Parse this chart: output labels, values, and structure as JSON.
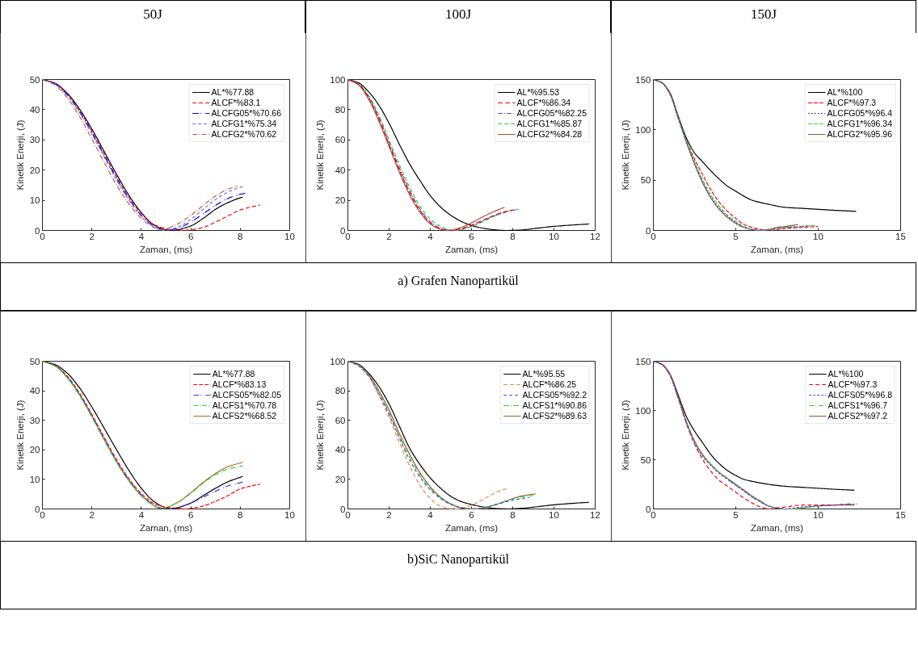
{
  "chart_data": [
    {
      "type": "line",
      "title": "50J",
      "xlabel": "Zaman, (ms)",
      "ylabel": "Kinetik Enerji, (J)",
      "xlim": [
        0,
        10
      ],
      "ylim": [
        0,
        50
      ],
      "xticks": [
        0,
        2,
        4,
        6,
        8,
        10
      ],
      "yticks": [
        0,
        10,
        20,
        30,
        40,
        50
      ],
      "grid": false,
      "legend": "top right",
      "annotations": [
        "a) Grafen Nanopartikül"
      ],
      "series": [
        {
          "name": "AL*%77.88",
          "color": "#000000",
          "line_style": "solid",
          "x": [
            0,
            0.5,
            1,
            1.5,
            2,
            2.5,
            3,
            3.5,
            4,
            4.5,
            5,
            5.25,
            5.5,
            6,
            6.5,
            7,
            7.5,
            8,
            8.1
          ],
          "values": [
            50,
            48.8,
            45.5,
            40.2,
            33.6,
            26.1,
            18.6,
            11.6,
            5.9,
            1.9,
            0.2,
            0,
            0.3,
            1.5,
            4,
            7,
            9.2,
            10.8,
            11
          ]
        },
        {
          "name": "ALCF*%83.1",
          "color": "#ff0000",
          "line_style": "dashed",
          "x": [
            0,
            0.5,
            1,
            1.5,
            2,
            2.5,
            3,
            3.5,
            4,
            4.5,
            5,
            5.5,
            6,
            6.5,
            7,
            7.5,
            8,
            8.5,
            8.8
          ],
          "values": [
            50,
            48.7,
            45.2,
            39.8,
            32.8,
            25.3,
            17.7,
            11,
            5.6,
            2,
            0.6,
            0,
            0.2,
            1,
            2.8,
            4.8,
            6.8,
            7.9,
            8.4
          ]
        },
        {
          "name": "ALCFG05*%70.66",
          "color": "#0000ff",
          "line_style": "dashdot",
          "x": [
            0,
            0.5,
            1,
            1.5,
            2,
            2.5,
            3,
            3.5,
            4,
            4.5,
            5,
            5.5,
            6,
            6.5,
            7,
            7.5,
            8,
            8.2
          ],
          "values": [
            50,
            48.6,
            45,
            39.4,
            32.4,
            24.8,
            17.2,
            10.4,
            5,
            1.5,
            0,
            0.8,
            2.8,
            5.5,
            8.3,
            10.6,
            12,
            12.3
          ]
        },
        {
          "name": "ALCFG1*%75.34",
          "color": "#6b6bff",
          "line_style": "dotted",
          "x": [
            0,
            0.5,
            1,
            1.5,
            2,
            2.5,
            3,
            3.5,
            4,
            4.5,
            4.9,
            5.5,
            6,
            6.5,
            7,
            7.5,
            8,
            8.1
          ],
          "values": [
            50,
            48.5,
            44.7,
            39,
            32,
            24.3,
            16.7,
            10,
            4.7,
            1.3,
            0,
            1.2,
            3.7,
            7,
            10.2,
            12.7,
            14.3,
            14.5
          ]
        },
        {
          "name": "ALCFG2*%70.62",
          "color": "#b5653f",
          "line_style": "dashdot",
          "x": [
            0,
            0.5,
            1,
            1.5,
            2,
            2.5,
            3,
            3.5,
            4,
            4.5,
            4.8,
            5,
            5.5,
            6,
            6.5,
            7,
            7.5,
            7.9
          ],
          "values": [
            50,
            48.2,
            44,
            37.8,
            30.3,
            22.5,
            15,
            8.8,
            4,
            1,
            0.3,
            0.6,
            2.3,
            5,
            8.3,
            11.4,
            13.7,
            14.7
          ]
        }
      ]
    },
    {
      "type": "line",
      "title": "100J",
      "xlabel": "Zaman, (ms)",
      "ylabel": "Kinetik Enerji, (J)",
      "xlim": [
        0,
        12
      ],
      "ylim": [
        0,
        100
      ],
      "xticks": [
        0,
        2,
        4,
        6,
        8,
        10,
        12
      ],
      "yticks": [
        0,
        20,
        40,
        60,
        80,
        100
      ],
      "grid": false,
      "legend": "top right",
      "series": [
        {
          "name": "AL*%95.53",
          "color": "#000000",
          "line_style": "solid",
          "x": [
            0,
            0.5,
            1,
            1.5,
            2,
            2.5,
            3,
            3.5,
            4,
            4.5,
            5,
            5.5,
            6,
            6.5,
            7,
            7.7,
            8.5,
            9,
            10,
            11,
            11.7
          ],
          "values": [
            100,
            98,
            92,
            83,
            71,
            57,
            44,
            33,
            23,
            15.5,
            10,
            6,
            3.3,
            1.6,
            0.6,
            0,
            0.4,
            1.2,
            2.7,
            3.7,
            4.3
          ]
        },
        {
          "name": "ALCF*%86.34",
          "color": "#ff0000",
          "line_style": "dashed",
          "x": [
            0,
            0.5,
            1,
            1.5,
            2,
            2.5,
            3,
            3.5,
            4,
            4.5,
            5,
            5.5,
            6,
            6.5,
            7,
            7.5,
            8
          ],
          "values": [
            100,
            97,
            88,
            74,
            57,
            40,
            25,
            13,
            5,
            1,
            0,
            1.2,
            3.5,
            6.5,
            9.5,
            12,
            13.6
          ]
        },
        {
          "name": "ALCFG05*%82.25",
          "color": "#4b4bff",
          "line_style": "dashdot",
          "x": [
            0,
            0.5,
            1,
            1.5,
            2,
            2.5,
            3,
            3.5,
            4,
            4.5,
            5.1,
            5.5,
            6,
            6.5,
            7,
            7.5,
            8,
            8.15
          ],
          "values": [
            100,
            97.3,
            88.7,
            75,
            58.2,
            41.3,
            26.3,
            14.2,
            5.8,
            1.5,
            0,
            0.8,
            3,
            6,
            9.1,
            11.6,
            13.3,
            13.7
          ]
        },
        {
          "name": "ALCFG1*%85.87",
          "color": "#1fdc1f",
          "line_style": "dashed",
          "x": [
            0,
            0.5,
            1,
            1.5,
            2,
            2.5,
            3,
            3.5,
            4,
            4.5,
            5,
            5.2,
            5.5,
            6,
            6.5,
            7,
            7.5,
            8,
            8.3
          ],
          "values": [
            100,
            97.6,
            89.5,
            76.5,
            60,
            43.5,
            28.5,
            16,
            7.5,
            2.7,
            0.3,
            0,
            0.5,
            2.5,
            5.5,
            8.8,
            11.5,
            13.5,
            14
          ]
        },
        {
          "name": "ALCFG2*%84.28",
          "color": "#b0522a",
          "line_style": "solid",
          "x": [
            0,
            0.5,
            1,
            1.5,
            2,
            2.5,
            3,
            3.5,
            4,
            4.5,
            4.8,
            5,
            5.5,
            6,
            6.5,
            7,
            7.5,
            7.6
          ],
          "values": [
            100,
            96.6,
            87,
            72.5,
            55.5,
            38.5,
            23.5,
            12,
            4.3,
            0.8,
            0,
            0.3,
            2,
            5,
            8.7,
            12,
            14.8,
            15.3
          ]
        }
      ]
    },
    {
      "type": "line",
      "title": "150J",
      "xlabel": "Zaman, (ms)",
      "ylabel": "Kinetik Enerji, (J)",
      "xlim": [
        0,
        15
      ],
      "ylim": [
        0,
        150
      ],
      "xticks": [
        0,
        5,
        10,
        15
      ],
      "yticks": [
        0,
        50,
        100,
        150
      ],
      "grid": false,
      "legend": "top right",
      "series": [
        {
          "name": "AL*%100",
          "color": "#000000",
          "line_style": "solid",
          "x": [
            0,
            0.5,
            1,
            1.5,
            2,
            2.5,
            3,
            3.5,
            4,
            4.5,
            5,
            5.5,
            6,
            7,
            8,
            9,
            10,
            11,
            12.3
          ],
          "values": [
            150,
            147,
            137,
            114,
            92,
            77,
            68,
            59,
            51,
            44,
            39,
            34,
            30,
            26,
            23,
            22,
            21,
            20,
            19
          ]
        },
        {
          "name": "ALCF*%97.3",
          "color": "#ff0000",
          "line_style": "dashed",
          "x": [
            0,
            0.5,
            1,
            1.5,
            2,
            2.5,
            3,
            3.5,
            4,
            4.5,
            5,
            5.5,
            6,
            6.5,
            7,
            7.5,
            8,
            9,
            10
          ],
          "values": [
            150,
            147,
            136,
            112,
            89,
            71,
            55,
            40,
            28,
            19,
            12,
            6,
            3,
            1,
            0,
            1,
            2,
            3,
            4
          ]
        },
        {
          "name": "ALCFG05*%96.4",
          "color": "#4040ff",
          "line_style": "dotted",
          "x": [
            0,
            0.5,
            1,
            1.5,
            2,
            2.5,
            3,
            3.5,
            4,
            4.5,
            5,
            5.5,
            6,
            6.5,
            7,
            7.5,
            8,
            9,
            9.5
          ],
          "values": [
            150,
            147,
            136,
            112,
            88,
            66,
            48,
            33,
            22,
            14,
            8,
            3,
            1,
            0,
            1,
            2,
            3,
            4,
            5
          ]
        },
        {
          "name": "ALCFG1*%96.34",
          "color": "#1fdc1f",
          "line_style": "dashed",
          "x": [
            0,
            0.5,
            1,
            1.5,
            2,
            2.5,
            3,
            3.5,
            4,
            4.5,
            5,
            5.5,
            6,
            6.5,
            7,
            7.5,
            8,
            9,
            9.8
          ],
          "values": [
            150,
            147,
            136,
            112,
            89,
            68,
            50,
            35,
            24,
            15,
            9,
            4,
            1,
            0,
            1,
            2,
            3,
            4,
            5
          ]
        },
        {
          "name": "ALCFG2*%95.96",
          "color": "#a0522d",
          "line_style": "solid",
          "x": [
            0,
            0.5,
            1,
            1.5,
            2,
            2.5,
            3,
            3.5,
            4,
            4.5,
            5,
            5.5,
            6,
            6.5,
            7,
            7.5,
            8,
            8.8
          ],
          "values": [
            150,
            147,
            136,
            113,
            88,
            66,
            47,
            32,
            21,
            13,
            7,
            3,
            1,
            0,
            1,
            3,
            4,
            6
          ]
        }
      ]
    },
    {
      "type": "line",
      "xlabel": "Zaman, (ms)",
      "ylabel": "Kinetik Enerji, (J)",
      "xlim": [
        0,
        10
      ],
      "ylim": [
        0,
        50
      ],
      "xticks": [
        0,
        2,
        4,
        6,
        8,
        10
      ],
      "yticks": [
        0,
        10,
        20,
        30,
        40,
        50
      ],
      "grid": false,
      "legend": "top right",
      "annotations": [
        "b)SiC Nanopartikül"
      ],
      "series": [
        {
          "name": "AL*%77.88",
          "color": "#000000",
          "line_style": "solid",
          "x": [
            0,
            0.5,
            1,
            1.5,
            2,
            2.5,
            3,
            3.5,
            4,
            4.5,
            5,
            5.2,
            5.5,
            6,
            6.5,
            7,
            7.5,
            8.1
          ],
          "values": [
            50,
            48.9,
            46,
            41,
            34.5,
            27.3,
            20,
            13,
            7,
            2.6,
            0.4,
            0,
            0.5,
            2,
            4.5,
            7,
            9.2,
            11
          ]
        },
        {
          "name": "ALCF*%83.13",
          "color": "#ff0000",
          "line_style": "dashed",
          "x": [
            0,
            0.5,
            1,
            1.5,
            2,
            2.5,
            3,
            3.5,
            4,
            4.5,
            5,
            5.5,
            5.8,
            6,
            6.5,
            7,
            7.5,
            8,
            8.5,
            8.8
          ],
          "values": [
            50,
            48.6,
            45,
            39.2,
            32,
            24.2,
            16.7,
            10.2,
            5.2,
            1.9,
            0.6,
            0.2,
            0,
            0.2,
            1,
            2.6,
            4.5,
            6.8,
            7.9,
            8.4
          ]
        },
        {
          "name": "ALCFS05*%82.05",
          "color": "#3a3aff",
          "line_style": "dashdot",
          "x": [
            0,
            0.5,
            1,
            1.5,
            2,
            2.5,
            3,
            3.5,
            4,
            4.5,
            5,
            5.5,
            6,
            6.5,
            7,
            7.5,
            8.1
          ],
          "values": [
            50,
            48.5,
            44.7,
            38.8,
            31.5,
            23.7,
            16.2,
            9.8,
            4.7,
            1.4,
            0,
            0.6,
            2,
            4,
            6,
            7.8,
            9.1
          ]
        },
        {
          "name": "ALCFS1*%70.78",
          "color": "#1fdc1f",
          "line_style": "dashdot",
          "x": [
            0,
            0.5,
            1,
            1.5,
            2,
            2.5,
            3,
            3.5,
            4,
            4.5,
            4.75,
            5,
            5.5,
            6,
            6.5,
            7,
            7.5,
            8.1
          ],
          "values": [
            50,
            48.4,
            44.4,
            38.4,
            31,
            23.2,
            15.7,
            9.3,
            4.4,
            1.1,
            0.2,
            0.5,
            2.3,
            5.3,
            8.7,
            11.6,
            13.5,
            14.6
          ]
        },
        {
          "name": "ALCFS2*%68.52",
          "color": "#b5653f",
          "line_style": "solid",
          "x": [
            0,
            0.5,
            1,
            1.5,
            2,
            2.5,
            3,
            3.5,
            4,
            4.5,
            4.75,
            5,
            5.5,
            6,
            6.5,
            7,
            7.5,
            8.1
          ],
          "values": [
            50,
            48.5,
            44.6,
            38.7,
            31.4,
            23.6,
            16,
            9.6,
            4.6,
            1.3,
            0.2,
            0.5,
            2.4,
            5.5,
            9,
            12,
            14.3,
            15.8
          ]
        }
      ]
    },
    {
      "type": "line",
      "xlabel": "Zaman, (ms)",
      "ylabel": "Kinetik Enerji, (J)",
      "xlim": [
        0,
        12
      ],
      "ylim": [
        0,
        100
      ],
      "xticks": [
        0,
        2,
        4,
        6,
        8,
        10,
        12
      ],
      "yticks": [
        0,
        20,
        40,
        60,
        80,
        100
      ],
      "grid": false,
      "legend": "top right",
      "series": [
        {
          "name": "AL*%95.55",
          "color": "#000000",
          "line_style": "solid",
          "x": [
            0,
            0.5,
            1,
            1.5,
            2,
            2.5,
            3,
            3.5,
            4,
            4.5,
            5,
            5.5,
            6,
            6.5,
            7,
            7.8,
            8.5,
            9,
            10,
            11,
            11.7
          ],
          "values": [
            100,
            98,
            92,
            83,
            71,
            56,
            41,
            30,
            21,
            14,
            8.5,
            5,
            3,
            1.5,
            0.5,
            0,
            0.5,
            1.2,
            2.8,
            3.9,
            4.5
          ]
        },
        {
          "name": "ALCF*%86.25",
          "color": "#f0804a",
          "line_style": "dashed",
          "x": [
            0,
            0.5,
            1,
            1.5,
            2,
            2.5,
            3,
            3.5,
            4,
            4.5,
            5,
            5.3,
            5.5,
            6,
            6.5,
            7,
            7.5,
            7.7
          ],
          "values": [
            100,
            97,
            90,
            77,
            62,
            45,
            29,
            16,
            7,
            2,
            0.2,
            0,
            0.5,
            2.5,
            6,
            9.8,
            13,
            13.6
          ]
        },
        {
          "name": "ALCFS05*%92.2",
          "color": "#4a4aff",
          "line_style": "dotted",
          "x": [
            0,
            0.5,
            1,
            1.5,
            2,
            2.5,
            3,
            3.5,
            4,
            4.5,
            5,
            5.5,
            6,
            6.5,
            7,
            7.5,
            8,
            8.5,
            8.8
          ],
          "values": [
            100,
            97,
            90,
            78,
            64,
            48,
            33,
            21.5,
            13,
            7,
            3,
            0.7,
            0,
            0.6,
            2.2,
            4.2,
            6,
            7.2,
            7.8
          ]
        },
        {
          "name": "ALCFS1*%90.86",
          "color": "#1fdc1f",
          "line_style": "dashdot",
          "x": [
            0,
            0.5,
            1,
            1.5,
            2,
            2.5,
            3,
            3.5,
            4,
            4.5,
            5,
            5.5,
            6,
            6.5,
            7,
            7.5,
            8,
            8.5,
            9
          ],
          "values": [
            100,
            97.5,
            90.5,
            79,
            65,
            49,
            35,
            23,
            14,
            7.5,
            3,
            0.8,
            0,
            0.6,
            2.3,
            4.6,
            6.8,
            8.3,
            9.1
          ]
        },
        {
          "name": "ALCFS2*%89.63",
          "color": "#b0522a",
          "line_style": "solid",
          "x": [
            0,
            0.5,
            1,
            1.5,
            2,
            2.5,
            3,
            3.5,
            4,
            4.5,
            5,
            5.5,
            6,
            6.3,
            6.5,
            7,
            7.5,
            8,
            8.5,
            9.1
          ],
          "values": [
            100,
            97.5,
            91,
            80,
            67,
            51,
            37,
            24.5,
            15,
            8,
            3.5,
            1,
            0.1,
            0,
            0.5,
            2.2,
            4.5,
            7,
            9,
            10.2
          ]
        }
      ]
    },
    {
      "type": "line",
      "xlabel": "Zaman, (ms)",
      "ylabel": "Kinetik Enerji, (J)",
      "xlim": [
        0,
        15
      ],
      "ylim": [
        0,
        150
      ],
      "xticks": [
        0,
        5,
        10,
        15
      ],
      "yticks": [
        0,
        50,
        100,
        150
      ],
      "grid": false,
      "legend": "top right",
      "series": [
        {
          "name": "AL*%100",
          "color": "#000000",
          "line_style": "solid",
          "x": [
            0,
            0.5,
            1,
            1.5,
            2,
            2.5,
            3,
            3.5,
            4,
            4.5,
            5,
            5.5,
            6,
            7,
            8,
            9,
            10,
            11,
            12.2
          ],
          "values": [
            150,
            147,
            137,
            116,
            94,
            79,
            67,
            55,
            46,
            39,
            34,
            30,
            28,
            25,
            23,
            22,
            21,
            20,
            19
          ]
        },
        {
          "name": "ALCF*%97.3",
          "color": "#ff0000",
          "line_style": "dashed",
          "x": [
            0,
            0.5,
            1,
            1.5,
            2,
            2.5,
            3,
            3.5,
            4,
            4.5,
            5,
            5.5,
            6,
            6.5,
            7,
            7.5,
            8,
            9,
            10,
            11,
            11.95
          ],
          "values": [
            150,
            147,
            136,
            113,
            87,
            66,
            50,
            38,
            29,
            23,
            17,
            11,
            6,
            2,
            0,
            1,
            2,
            4,
            4,
            4,
            5
          ]
        },
        {
          "name": "ALCFS05*%96.8",
          "color": "#4a4aff",
          "line_style": "dotted",
          "x": [
            0,
            0.5,
            1,
            1.5,
            2,
            2.5,
            3,
            3.5,
            4,
            4.5,
            5,
            5.5,
            6,
            6.5,
            7,
            7.5,
            8,
            8.5,
            9,
            10,
            11,
            12.2
          ],
          "values": [
            150,
            147,
            136,
            113,
            88,
            67,
            53,
            44,
            36,
            30,
            24,
            18,
            12,
            7,
            3,
            1,
            0,
            1,
            2,
            3,
            4,
            5
          ]
        },
        {
          "name": "ALCFS1*%96.7",
          "color": "#1fdc1f",
          "line_style": "dashdot",
          "x": [
            0,
            0.5,
            1,
            1.5,
            2,
            2.5,
            3,
            3.5,
            4,
            4.5,
            5,
            5.5,
            6,
            6.5,
            7,
            7.5,
            8,
            8.5,
            9,
            10,
            11,
            12.35
          ],
          "values": [
            150,
            147,
            136,
            113,
            88,
            68,
            54,
            45,
            37,
            30,
            24,
            18,
            12,
            7,
            3,
            1,
            0,
            0,
            1,
            3,
            4,
            5
          ]
        },
        {
          "name": "ALCFS2*%97.2",
          "color": "#a0522d",
          "line_style": "solid",
          "x": [
            0,
            0.5,
            1,
            1.5,
            2,
            2.5,
            3,
            3.5,
            4,
            4.5,
            5,
            5.5,
            6,
            6.5,
            7,
            7.5,
            8,
            8.5,
            9,
            10,
            11,
            12.2
          ],
          "values": [
            150,
            147,
            137,
            114,
            89,
            69,
            55,
            45,
            37,
            31,
            25,
            19,
            13,
            8,
            3,
            1,
            0,
            0,
            1,
            3,
            4,
            4
          ]
        }
      ]
    }
  ]
}
